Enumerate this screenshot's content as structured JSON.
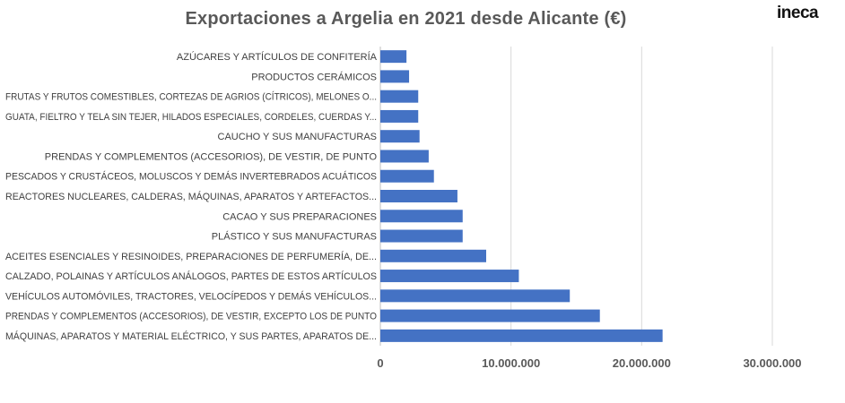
{
  "brand": {
    "logo_text": "ineca"
  },
  "chart_data": {
    "type": "bar",
    "orientation": "horizontal",
    "title": "Exportaciones  a Argelia en 2021 desde Alicante (€)",
    "xlabel": "",
    "ylabel": "",
    "xlim": [
      0,
      30000000
    ],
    "x_ticks": [
      0,
      10000000,
      20000000,
      30000000
    ],
    "x_tick_labels": [
      "0",
      "10.000.000",
      "20.000.000",
      "30.000.000"
    ],
    "grid": "vertical",
    "legend": "none",
    "bar_color": "#4472C4",
    "categories": [
      "AZÚCARES Y ARTÍCULOS DE CONFITERÍA",
      "PRODUCTOS CERÁMICOS",
      "FRUTAS Y FRUTOS COMESTIBLES, CORTEZAS DE AGRIOS (CÍTRICOS), MELONES O...",
      "GUATA, FIELTRO Y TELA SIN TEJER, HILADOS ESPECIALES, CORDELES, CUERDAS Y...",
      "CAUCHO Y SUS MANUFACTURAS",
      "PRENDAS Y COMPLEMENTOS (ACCESORIOS), DE VESTIR, DE PUNTO",
      "PESCADOS Y CRUSTÁCEOS, MOLUSCOS Y DEMÁS INVERTEBRADOS ACUÁTICOS",
      "REACTORES NUCLEARES, CALDERAS, MÁQUINAS, APARATOS Y ARTEFACTOS...",
      "CACAO Y SUS PREPARACIONES",
      "PLÁSTICO Y SUS MANUFACTURAS",
      "ACEITES ESENCIALES Y RESINOIDES, PREPARACIONES DE PERFUMERÍA, DE...",
      "CALZADO, POLAINAS Y ARTÍCULOS ANÁLOGOS, PARTES DE ESTOS ARTÍCULOS",
      "VEHÍCULOS AUTOMÓVILES, TRACTORES, VELOCÍPEDOS Y DEMÁS VEHÍCULOS...",
      "PRENDAS Y COMPLEMENTOS (ACCESORIOS), DE VESTIR, EXCEPTO LOS DE PUNTO",
      "MÁQUINAS, APARATOS Y MATERIAL ELÉCTRICO, Y SUS PARTES, APARATOS DE..."
    ],
    "values": [
      2000000,
      2200000,
      2900000,
      2900000,
      3000000,
      3700000,
      4100000,
      5900000,
      6300000,
      6300000,
      8100000,
      10600000,
      14500000,
      16800000,
      21600000
    ]
  }
}
